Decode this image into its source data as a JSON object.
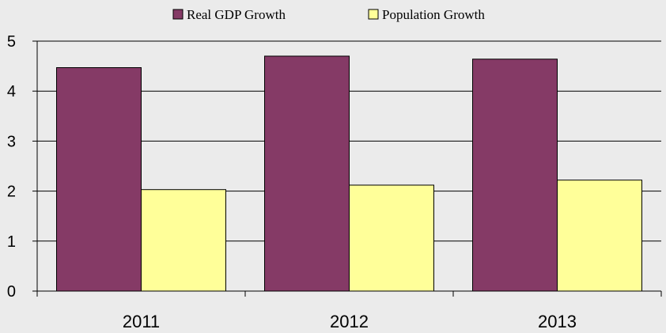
{
  "chart_data": {
    "type": "bar",
    "categories": [
      "2011",
      "2012",
      "2013"
    ],
    "series": [
      {
        "name": "Real GDP Growth",
        "values": [
          4.47,
          4.7,
          4.64
        ],
        "color": "#853a66"
      },
      {
        "name": "Population Growth",
        "values": [
          2.03,
          2.12,
          2.22
        ],
        "color": "#ffff99"
      }
    ],
    "yticks": [
      "0",
      "1",
      "2",
      "3",
      "4",
      "5"
    ],
    "ylim": [
      0,
      5
    ],
    "grid": true,
    "legend_position": "top"
  }
}
